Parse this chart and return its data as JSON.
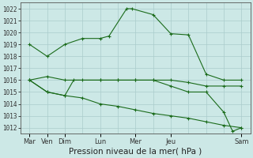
{
  "bg_color": "#cce8e6",
  "grid_color": "#aacccc",
  "line_color": "#1a6b1a",
  "xlabel": "Pression niveau de la mer( hPa )",
  "ylim": [
    1011.5,
    1022.5
  ],
  "xlim": [
    0,
    13
  ],
  "yticks": [
    1012,
    1013,
    1014,
    1015,
    1016,
    1017,
    1018,
    1019,
    1020,
    1021,
    1022
  ],
  "xtick_positions": [
    0.5,
    1.5,
    2.5,
    4.5,
    6.5,
    8.5,
    12.5
  ],
  "xtick_labels": [
    "Mar",
    "Ven",
    "Dim",
    "Lun",
    "Mer",
    "Jeu",
    "Sam"
  ],
  "grid_x_positions": [
    0.5,
    1.5,
    2.5,
    3.5,
    4.5,
    5.5,
    6.5,
    7.5,
    8.5,
    9.5,
    10.5,
    11.5,
    12.5
  ],
  "line1": {
    "x": [
      0.5,
      1.5,
      2.5,
      3.5,
      4.5,
      5.0,
      6.0,
      6.3,
      7.5,
      8.5,
      9.5,
      10.5,
      11.5,
      12.5
    ],
    "y": [
      1019.0,
      1018.0,
      1019.0,
      1019.5,
      1019.5,
      1019.7,
      1022.0,
      1022.0,
      1021.5,
      1019.9,
      1019.8,
      1016.5,
      1016.0,
      1016.0
    ]
  },
  "line2": {
    "x": [
      0.5,
      1.5,
      2.5,
      3.5,
      4.5,
      5.5,
      6.5,
      7.5,
      8.5,
      9.5,
      10.5,
      11.5,
      12.5
    ],
    "y": [
      1016.0,
      1016.3,
      1016.0,
      1016.0,
      1016.0,
      1016.0,
      1016.0,
      1016.0,
      1016.0,
      1015.8,
      1015.5,
      1015.5,
      1015.5
    ]
  },
  "line3": {
    "x": [
      0.5,
      1.5,
      2.5,
      3.5,
      4.5,
      5.5,
      6.5,
      7.5,
      8.5,
      9.5,
      10.5,
      11.5,
      12.5
    ],
    "y": [
      1016.0,
      1015.0,
      1014.7,
      1014.5,
      1014.0,
      1013.8,
      1013.5,
      1013.2,
      1013.0,
      1012.8,
      1012.5,
      1012.2,
      1012.0
    ]
  },
  "line4": {
    "x": [
      0.5,
      1.5,
      2.5,
      3.0,
      4.5,
      5.5,
      6.5,
      7.5,
      8.5,
      9.5,
      10.5,
      11.5,
      12.0,
      12.5
    ],
    "y": [
      1016.0,
      1015.0,
      1014.7,
      1016.0,
      1016.0,
      1016.0,
      1016.0,
      1016.0,
      1015.5,
      1015.0,
      1015.0,
      1013.3,
      1011.7,
      1012.0
    ]
  }
}
